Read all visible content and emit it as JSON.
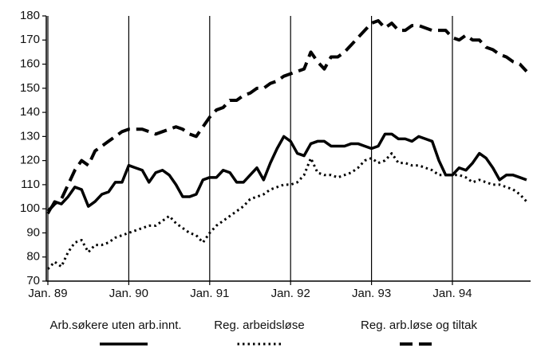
{
  "chart_data": {
    "type": "line",
    "categories": [
      "Jan. 89",
      null,
      null,
      null,
      null,
      null,
      null,
      null,
      null,
      null,
      null,
      null,
      "Jan. 90",
      null,
      null,
      null,
      null,
      null,
      null,
      null,
      null,
      null,
      null,
      null,
      "Jan. 91",
      null,
      null,
      null,
      null,
      null,
      null,
      null,
      null,
      null,
      null,
      null,
      "Jan. 92",
      null,
      null,
      null,
      null,
      null,
      null,
      null,
      null,
      null,
      null,
      null,
      "Jan. 93",
      null,
      null,
      null,
      null,
      null,
      null,
      null,
      null,
      null,
      null,
      null,
      "Jan. 94",
      null,
      null,
      null,
      null,
      null,
      null,
      null,
      null,
      null,
      null,
      null
    ],
    "ylim": [
      70,
      180
    ],
    "yticks": [
      70,
      80,
      90,
      100,
      110,
      120,
      130,
      140,
      150,
      160,
      170,
      180
    ],
    "series": [
      {
        "name": "Arb.søkere uten arb.innt.",
        "color": "#000000",
        "style": "solid",
        "values": [
          98,
          103,
          102,
          105,
          109,
          108,
          101,
          103,
          106,
          107,
          111,
          111,
          118,
          117,
          116,
          111,
          115,
          116,
          114,
          110,
          105,
          105,
          106,
          112,
          113,
          113,
          116,
          115,
          111,
          111,
          114,
          117,
          112,
          119,
          125,
          130,
          128,
          123,
          122,
          127,
          128,
          128,
          126,
          126,
          126,
          127,
          127,
          126,
          125,
          126,
          131,
          131,
          129,
          129,
          128,
          130,
          129,
          128,
          120,
          114,
          114,
          117,
          116,
          119,
          123,
          121,
          117,
          112,
          114,
          114,
          113,
          112
        ]
      },
      {
        "name": "Reg. arbeidsløse",
        "color": "#000000",
        "style": "dotted",
        "values": [
          75,
          78,
          76,
          82,
          86,
          87,
          82,
          85,
          85,
          86,
          88,
          89,
          90,
          91,
          92,
          93,
          93,
          95,
          97,
          94,
          92,
          90,
          89,
          86,
          90,
          93,
          95,
          97,
          99,
          101,
          104,
          105,
          106,
          108,
          109,
          110,
          110,
          111,
          114,
          121,
          115,
          114,
          114,
          113,
          114,
          115,
          117,
          120,
          121,
          119,
          120,
          123,
          119,
          119,
          118,
          118,
          117,
          116,
          114,
          114,
          114,
          114,
          113,
          111,
          112,
          111,
          110,
          110,
          109,
          108,
          106,
          103
        ]
      },
      {
        "name": "Reg. arb.løse og tiltak",
        "color": "#000000",
        "style": "dashed",
        "values": [
          99,
          102,
          104,
          110,
          116,
          120,
          118,
          124,
          126,
          128,
          130,
          132,
          133,
          133,
          133,
          132,
          131,
          132,
          133,
          134,
          133,
          131,
          130,
          134,
          138,
          141,
          142,
          145,
          145,
          147,
          148,
          150,
          150,
          152,
          153,
          155,
          156,
          157,
          158,
          165,
          161,
          158,
          163,
          163,
          165,
          168,
          171,
          174,
          177,
          178,
          175,
          177,
          174,
          174,
          176,
          176,
          175,
          174,
          174,
          174,
          171,
          170,
          172,
          170,
          170,
          167,
          166,
          164,
          163,
          161,
          160,
          157
        ]
      }
    ]
  }
}
